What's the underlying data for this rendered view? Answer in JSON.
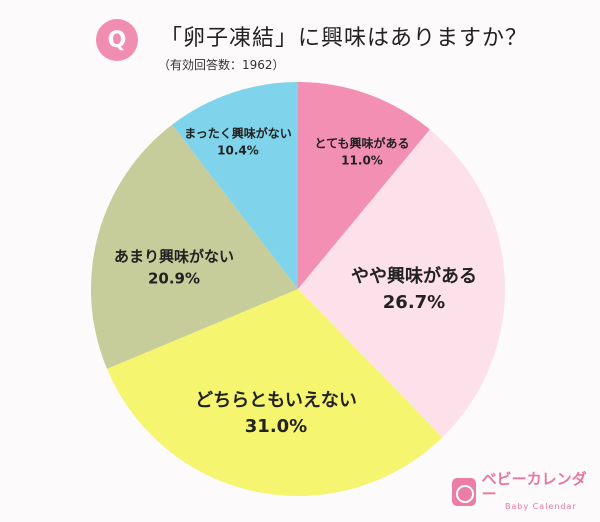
{
  "header": {
    "badge": "Q",
    "title": "「卵子凍結」に興味はありますか？",
    "subtitle": "（有効回答数：1962）"
  },
  "logo": {
    "text": "ベビーカレンダー",
    "sub": "Baby Calendar"
  },
  "chart_data": {
    "type": "pie",
    "title": "「卵子凍結」に興味はありますか？",
    "start_angle": "12 o'clock",
    "direction": "clockwise",
    "categories": [
      "とても興味がある",
      "やや興味がある",
      "どちらともいえない",
      "あまり興味がない",
      "まったく興味がない"
    ],
    "values": [
      11.0,
      26.7,
      31.0,
      20.9,
      10.4
    ],
    "labels": [
      "11.0%",
      "26.7%",
      "31.0%",
      "20.9%",
      "10.4%"
    ],
    "colors": [
      "#f48fb4",
      "#fde1ea",
      "#f5f56f",
      "#c6cc9a",
      "#7fd3ea"
    ]
  }
}
